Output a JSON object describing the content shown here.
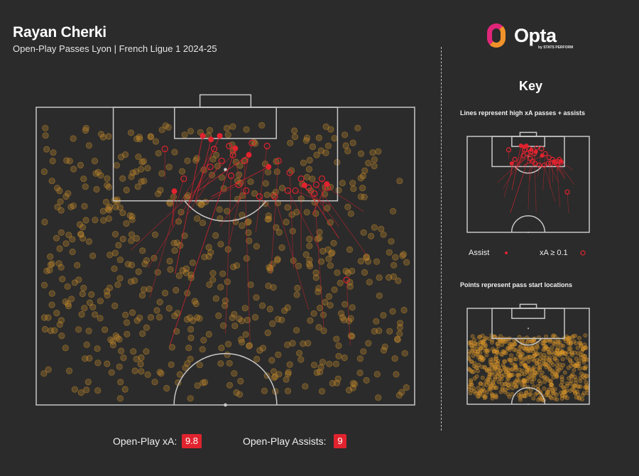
{
  "header": {
    "title": "Rayan Cherki",
    "subtitle": "Open-Play Passes Lyon | French Ligue 1 2024-25"
  },
  "logo": {
    "wordmark": "Opta",
    "tagline": "by STATS PERFORM"
  },
  "key": {
    "title": "Key",
    "lines_note": "Lines represent high xA passes + assists",
    "points_note": "Points represent pass start locations",
    "legend": {
      "assist_label": "Assist",
      "xa_label": "xA ≥ 0.1"
    }
  },
  "stats": {
    "xa_label": "Open-Play xA:",
    "xa_value": "9.8",
    "assists_label": "Open-Play Assists:",
    "assists_value": "9"
  },
  "colors": {
    "background": "#2b2b2b",
    "pitch_lines": "#c8c8c8",
    "pass_points": "#d9962a",
    "assist": "#e0232e",
    "stat_badge": "#e0232e"
  },
  "chart_data": {
    "type": "scatter",
    "pitch": "opponent half, attacking upward, x 0–100 (left to right), y 50–100 (halfway line to goal line)",
    "assists": [
      {
        "start": [
          36.0,
          80.0
        ],
        "end": [
          36.5,
          85.9
        ]
      },
      {
        "start": [
          36.7,
          72.0
        ],
        "end": [
          44.0,
          95.2
        ]
      },
      {
        "start": [
          40.8,
          84.0
        ],
        "end": [
          48.5,
          95.2
        ]
      },
      {
        "start": [
          42.0,
          84.0
        ],
        "end": [
          46.2,
          94.6
        ]
      },
      {
        "start": [
          42.6,
          85.9
        ],
        "end": [
          56.2,
          92.0
        ]
      },
      {
        "start": [
          35.3,
          60.0
        ],
        "end": [
          52.6,
          93.1
        ]
      },
      {
        "start": [
          46.3,
          85.0
        ],
        "end": [
          61.4,
          90.0
        ]
      },
      {
        "start": [
          80.0,
          78.0
        ],
        "end": [
          70.9,
          86.9
        ]
      },
      {
        "start": [
          73.0,
          82.0
        ],
        "end": [
          76.8,
          87.1
        ]
      }
    ],
    "xa_passes": [
      {
        "start": [
          30.0,
          68.0
        ],
        "end": [
          39.0,
          88.0
        ]
      },
      {
        "start": [
          29.5,
          73.0
        ],
        "end": [
          46.0,
          90.0
        ]
      },
      {
        "start": [
          25.0,
          76.0
        ],
        "end": [
          52.0,
          92.0
        ]
      },
      {
        "start": [
          40.0,
          82.0
        ],
        "end": [
          49.0,
          91.0
        ]
      },
      {
        "start": [
          38.0,
          84.0
        ],
        "end": [
          47.0,
          93.0
        ]
      },
      {
        "start": [
          56.5,
          60.5
        ],
        "end": [
          55.0,
          91.0
        ]
      },
      {
        "start": [
          51.0,
          77.0
        ],
        "end": [
          57.0,
          94.0
        ]
      },
      {
        "start": [
          58.0,
          79.0
        ],
        "end": [
          61.0,
          93.5
        ]
      },
      {
        "start": [
          62.0,
          72.0
        ],
        "end": [
          64.0,
          91.0
        ]
      },
      {
        "start": [
          48.5,
          80.0
        ],
        "end": [
          55.5,
          86.0
        ]
      },
      {
        "start": [
          44.5,
          84.0
        ],
        "end": [
          53.5,
          87.0
        ]
      },
      {
        "start": [
          62.0,
          83.0
        ],
        "end": [
          59.0,
          85.0
        ]
      },
      {
        "start": [
          75.0,
          76.0
        ],
        "end": [
          66.5,
          86.0
        ]
      },
      {
        "start": [
          80.0,
          80.0
        ],
        "end": [
          72.0,
          86.5
        ]
      },
      {
        "start": [
          86.5,
          82.5
        ],
        "end": [
          77.0,
          86.5
        ]
      },
      {
        "start": [
          78.0,
          83.5
        ],
        "end": [
          68.5,
          86.0
        ]
      },
      {
        "start": [
          87.5,
          75.0
        ],
        "end": [
          74.0,
          87.0
        ]
      },
      {
        "start": [
          76.0,
          82.0
        ],
        "end": [
          75.5,
          88.0
        ]
      },
      {
        "start": [
          70.0,
          76.0
        ],
        "end": [
          70.0,
          88.0
        ]
      },
      {
        "start": [
          68.0,
          73.0
        ],
        "end": [
          67.0,
          89.0
        ]
      },
      {
        "start": [
          76.0,
          63.0
        ],
        "end": [
          73.5,
          85.5
        ]
      },
      {
        "start": [
          83.0,
          60.0
        ],
        "end": [
          82.0,
          71.0
        ]
      },
      {
        "start": [
          72.0,
          66.0
        ],
        "end": [
          63.0,
          85.0
        ]
      },
      {
        "start": [
          50.0,
          62.0
        ],
        "end": [
          51.5,
          88.5
        ]
      },
      {
        "start": [
          54.0,
          88.0
        ],
        "end": [
          51.0,
          93.5
        ]
      },
      {
        "start": [
          34.0,
          88.0
        ],
        "end": [
          34.0,
          93.0
        ]
      }
    ]
  }
}
